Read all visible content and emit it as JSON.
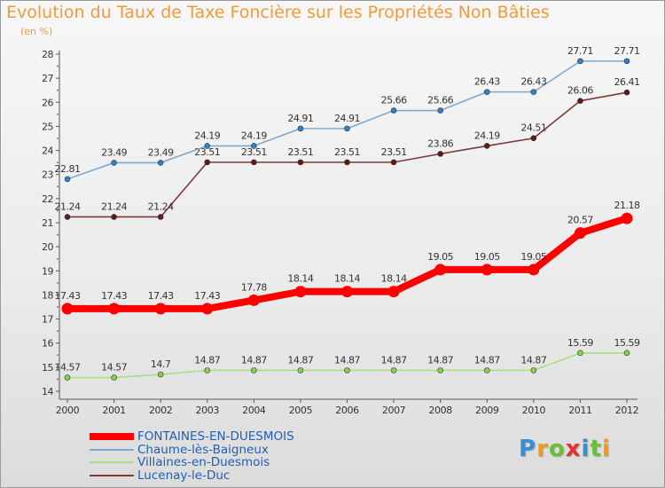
{
  "chart_data": {
    "type": "line",
    "title": "Evolution du Taux de Taxe Foncière sur les Propriétés Non Bâties",
    "unit_label": "(en %)",
    "x": [
      "2000",
      "2001",
      "2002",
      "2003",
      "2004",
      "2005",
      "2006",
      "2007",
      "2008",
      "2009",
      "2010",
      "2011",
      "2012"
    ],
    "ylim": [
      14,
      28
    ],
    "yticks": [
      "14",
      "15",
      "16",
      "17",
      "18",
      "19",
      "20",
      "21",
      "22",
      "23",
      "24",
      "25",
      "26",
      "27",
      "28"
    ],
    "grid": false,
    "legend_position": "bottom-left",
    "series": [
      {
        "name": "FONTAINES-EN-DUESMOIS",
        "color": "#ff0000",
        "emphasis": true,
        "values": [
          17.43,
          17.43,
          17.43,
          17.43,
          17.78,
          18.14,
          18.14,
          18.14,
          19.05,
          19.05,
          19.05,
          20.57,
          21.18
        ],
        "labels": [
          "17.43",
          "17.43",
          "17.43",
          "17.43",
          "17.78",
          "18.14",
          "18.14",
          "18.14",
          "19.05",
          "19.05",
          "19.05",
          "20.57",
          "21.18"
        ]
      },
      {
        "name": "Chaume-lès-Baigneux",
        "color": "#7fa8d0",
        "marker_color": "#2f82c7",
        "values": [
          22.81,
          23.49,
          23.49,
          24.19,
          24.19,
          24.91,
          24.91,
          25.66,
          25.66,
          26.43,
          26.43,
          27.71,
          27.71
        ],
        "labels": [
          "22.81",
          "23.49",
          "23.49",
          "24.19",
          "24.19",
          "24.91",
          "24.91",
          "25.66",
          "25.66",
          "26.43",
          "26.43",
          "27.71",
          "27.71"
        ]
      },
      {
        "name": "Villaines-en-Duesmois",
        "color": "#a9dd7e",
        "marker_color": "#86d34a",
        "values": [
          14.57,
          14.57,
          14.7,
          14.87,
          14.87,
          14.87,
          14.87,
          14.87,
          14.87,
          14.87,
          14.87,
          15.59,
          15.59
        ],
        "labels": [
          "14.57",
          "14.57",
          "14.7",
          "14.87",
          "14.87",
          "14.87",
          "14.87",
          "14.87",
          "14.87",
          "14.87",
          "14.87",
          "15.59",
          "15.59"
        ]
      },
      {
        "name": "Lucenay-le-Duc",
        "color": "#7a3a3a",
        "marker_color": "#5e1a1a",
        "values": [
          21.24,
          21.24,
          21.24,
          23.51,
          23.51,
          23.51,
          23.51,
          23.51,
          23.86,
          24.19,
          24.51,
          26.06,
          26.41
        ],
        "labels": [
          "21.24",
          "21.24",
          "21.24",
          "23.51",
          "23.51",
          "23.51",
          "23.51",
          "23.51",
          "23.86",
          "24.19",
          "24.51",
          "26.06",
          "26.41"
        ]
      }
    ]
  },
  "brand": {
    "letters": [
      "P",
      "r",
      "o",
      "x",
      "i",
      "t",
      "i"
    ],
    "colors": [
      "#3a8fd0",
      "#f39a1e",
      "#6cbf3c",
      "#e5322d",
      "#3a8fd0",
      "#6cbf3c",
      "#f39a1e"
    ]
  }
}
